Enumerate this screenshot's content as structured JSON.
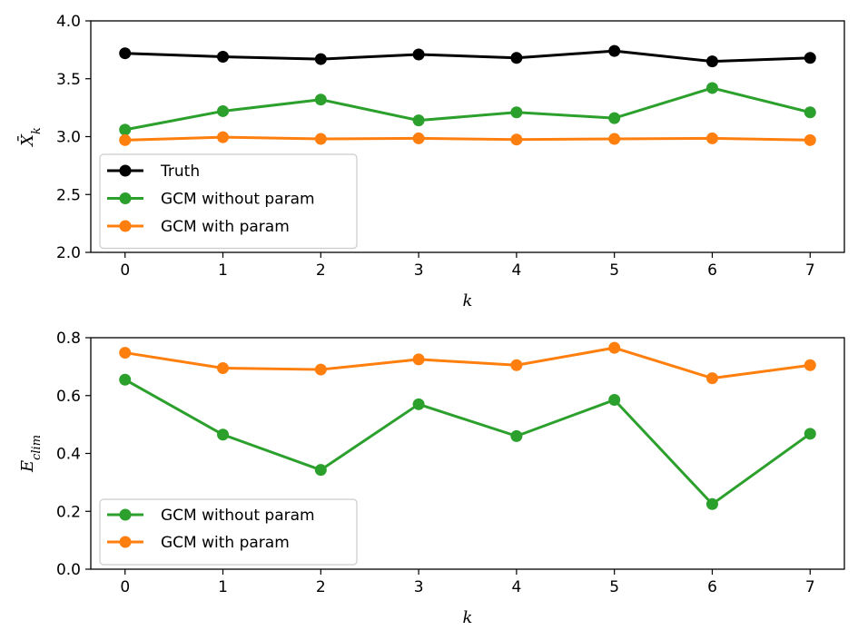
{
  "chart_data": [
    {
      "type": "line",
      "x": [
        0,
        1,
        2,
        3,
        4,
        5,
        6,
        7
      ],
      "xlabel": "k",
      "ylabel": "X̄_k",
      "ylim": [
        2.0,
        4.0
      ],
      "yticks": [
        "2.0",
        "2.5",
        "3.0",
        "3.5",
        "4.0"
      ],
      "xticks": [
        "0",
        "1",
        "2",
        "3",
        "4",
        "5",
        "6",
        "7"
      ],
      "legend_position": "lower-left",
      "grid": false,
      "series": [
        {
          "name": "Truth",
          "color": "#000000",
          "values": [
            3.72,
            3.69,
            3.67,
            3.71,
            3.68,
            3.74,
            3.65,
            3.68
          ]
        },
        {
          "name": "GCM without param",
          "color": "#2ca02c",
          "values": [
            3.06,
            3.22,
            3.32,
            3.14,
            3.21,
            3.16,
            3.42,
            3.21
          ]
        },
        {
          "name": "GCM with param",
          "color": "#ff7f0e",
          "values": [
            2.97,
            2.995,
            2.98,
            2.985,
            2.975,
            2.98,
            2.985,
            2.97
          ]
        }
      ]
    },
    {
      "type": "line",
      "x": [
        0,
        1,
        2,
        3,
        4,
        5,
        6,
        7
      ],
      "xlabel": "k",
      "ylabel": "E_clim",
      "ylim": [
        0.0,
        0.8
      ],
      "yticks": [
        "0.0",
        "0.2",
        "0.4",
        "0.6",
        "0.8"
      ],
      "xticks": [
        "0",
        "1",
        "2",
        "3",
        "4",
        "5",
        "6",
        "7"
      ],
      "legend_position": "lower-left",
      "grid": false,
      "series": [
        {
          "name": "GCM without param",
          "color": "#2ca02c",
          "values": [
            0.655,
            0.465,
            0.343,
            0.57,
            0.46,
            0.585,
            0.225,
            0.468
          ]
        },
        {
          "name": "GCM with param",
          "color": "#ff7f0e",
          "values": [
            0.748,
            0.695,
            0.69,
            0.725,
            0.705,
            0.765,
            0.66,
            0.705
          ]
        }
      ]
    }
  ]
}
